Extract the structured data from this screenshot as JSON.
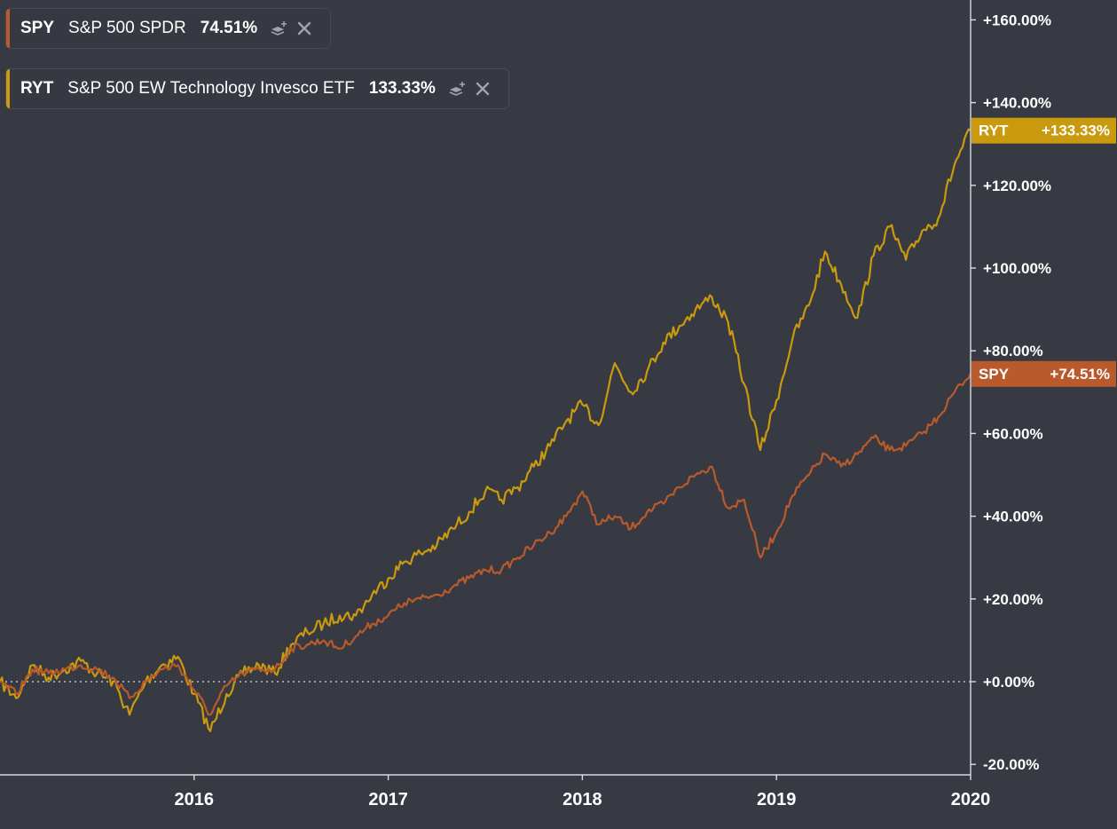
{
  "legend": [
    {
      "symbol": "SPY",
      "name": "S&P 500 SPDR",
      "value": "74.51%",
      "color": "#b85a2c"
    },
    {
      "symbol": "RYT",
      "name": "S&P 500 EW Technology Invesco ETF",
      "value": "133.33%",
      "color": "#c99a0e"
    }
  ],
  "icons": {
    "add": "layers-plus-icon",
    "remove": "close-icon"
  },
  "chart_data": {
    "type": "line",
    "x_start": "2015-01",
    "x_end": "2020-01",
    "x_ticks": [
      "2016",
      "2017",
      "2018",
      "2019",
      "2020"
    ],
    "y_ticks": [
      "+160.00%",
      "+140.00%",
      "+120.00%",
      "+100.00%",
      "+80.00%",
      "+60.00%",
      "+40.00%",
      "+20.00%",
      "+0.00%",
      "-20.00%"
    ],
    "ylim": [
      -20,
      160
    ],
    "zero_line": true,
    "series": [
      {
        "name": "RYT",
        "color": "#c99a0e",
        "last_label": "+133.33%",
        "points": [
          [
            "2015-01",
            0
          ],
          [
            "2015-02",
            -4
          ],
          [
            "2015-03",
            4
          ],
          [
            "2015-04",
            1
          ],
          [
            "2015-05",
            3
          ],
          [
            "2015-06",
            5
          ],
          [
            "2015-07",
            2
          ],
          [
            "2015-08",
            0
          ],
          [
            "2015-09",
            -8
          ],
          [
            "2015-10",
            0
          ],
          [
            "2015-11",
            4
          ],
          [
            "2015-12",
            6
          ],
          [
            "2016-01",
            -3
          ],
          [
            "2016-02",
            -12
          ],
          [
            "2016-03",
            -3
          ],
          [
            "2016-04",
            2
          ],
          [
            "2016-05",
            4
          ],
          [
            "2016-06",
            2
          ],
          [
            "2016-07",
            9
          ],
          [
            "2016-08",
            12
          ],
          [
            "2016-09",
            14
          ],
          [
            "2016-10",
            16
          ],
          [
            "2016-11",
            16
          ],
          [
            "2016-12",
            21
          ],
          [
            "2017-01",
            25
          ],
          [
            "2017-02",
            29
          ],
          [
            "2017-03",
            31
          ],
          [
            "2017-04",
            33
          ],
          [
            "2017-05",
            37
          ],
          [
            "2017-06",
            41
          ],
          [
            "2017-07",
            46
          ],
          [
            "2017-08",
            44
          ],
          [
            "2017-09",
            47
          ],
          [
            "2017-10",
            52
          ],
          [
            "2017-11",
            57
          ],
          [
            "2017-12",
            63
          ],
          [
            "2018-01",
            67
          ],
          [
            "2018-02",
            62
          ],
          [
            "2018-03",
            77
          ],
          [
            "2018-04",
            70
          ],
          [
            "2018-05",
            75
          ],
          [
            "2018-06",
            82
          ],
          [
            "2018-07",
            86
          ],
          [
            "2018-08",
            90
          ],
          [
            "2018-09",
            93
          ],
          [
            "2018-10",
            87
          ],
          [
            "2018-11",
            72
          ],
          [
            "2018-12",
            56
          ],
          [
            "2019-01",
            68
          ],
          [
            "2019-02",
            83
          ],
          [
            "2019-03",
            91
          ],
          [
            "2019-04",
            104
          ],
          [
            "2019-05",
            96
          ],
          [
            "2019-06",
            88
          ],
          [
            "2019-07",
            103
          ],
          [
            "2019-08",
            110
          ],
          [
            "2019-09",
            102
          ],
          [
            "2019-10",
            109
          ],
          [
            "2019-11",
            112
          ],
          [
            "2019-12",
            125
          ],
          [
            "2020-01",
            133.33
          ]
        ]
      },
      {
        "name": "SPY",
        "color": "#b85a2c",
        "last_label": "+74.51%",
        "points": [
          [
            "2015-01",
            0
          ],
          [
            "2015-02",
            -3
          ],
          [
            "2015-03",
            3
          ],
          [
            "2015-04",
            2
          ],
          [
            "2015-05",
            3
          ],
          [
            "2015-06",
            4
          ],
          [
            "2015-07",
            3
          ],
          [
            "2015-08",
            1
          ],
          [
            "2015-09",
            -4
          ],
          [
            "2015-10",
            0
          ],
          [
            "2015-11",
            3
          ],
          [
            "2015-12",
            4
          ],
          [
            "2016-01",
            -2
          ],
          [
            "2016-02",
            -8
          ],
          [
            "2016-03",
            -1
          ],
          [
            "2016-04",
            2
          ],
          [
            "2016-05",
            3
          ],
          [
            "2016-06",
            3
          ],
          [
            "2016-07",
            8
          ],
          [
            "2016-08",
            9
          ],
          [
            "2016-09",
            10
          ],
          [
            "2016-10",
            8
          ],
          [
            "2016-11",
            11
          ],
          [
            "2016-12",
            14
          ],
          [
            "2017-01",
            16
          ],
          [
            "2017-02",
            19
          ],
          [
            "2017-03",
            20
          ],
          [
            "2017-04",
            21
          ],
          [
            "2017-05",
            23
          ],
          [
            "2017-06",
            25
          ],
          [
            "2017-07",
            27
          ],
          [
            "2017-08",
            27
          ],
          [
            "2017-09",
            30
          ],
          [
            "2017-10",
            33
          ],
          [
            "2017-11",
            36
          ],
          [
            "2017-12",
            40
          ],
          [
            "2018-01",
            46
          ],
          [
            "2018-02",
            38
          ],
          [
            "2018-03",
            40
          ],
          [
            "2018-04",
            37
          ],
          [
            "2018-05",
            41
          ],
          [
            "2018-06",
            43
          ],
          [
            "2018-07",
            47
          ],
          [
            "2018-08",
            50
          ],
          [
            "2018-09",
            52
          ],
          [
            "2018-10",
            42
          ],
          [
            "2018-11",
            44
          ],
          [
            "2018-12",
            30
          ],
          [
            "2019-01",
            36
          ],
          [
            "2019-02",
            45
          ],
          [
            "2019-03",
            50
          ],
          [
            "2019-04",
            55
          ],
          [
            "2019-05",
            52
          ],
          [
            "2019-06",
            55
          ],
          [
            "2019-07",
            59
          ],
          [
            "2019-08",
            56
          ],
          [
            "2019-09",
            57
          ],
          [
            "2019-10",
            60
          ],
          [
            "2019-11",
            64
          ],
          [
            "2019-12",
            70
          ],
          [
            "2020-01",
            74.51
          ]
        ]
      }
    ]
  }
}
